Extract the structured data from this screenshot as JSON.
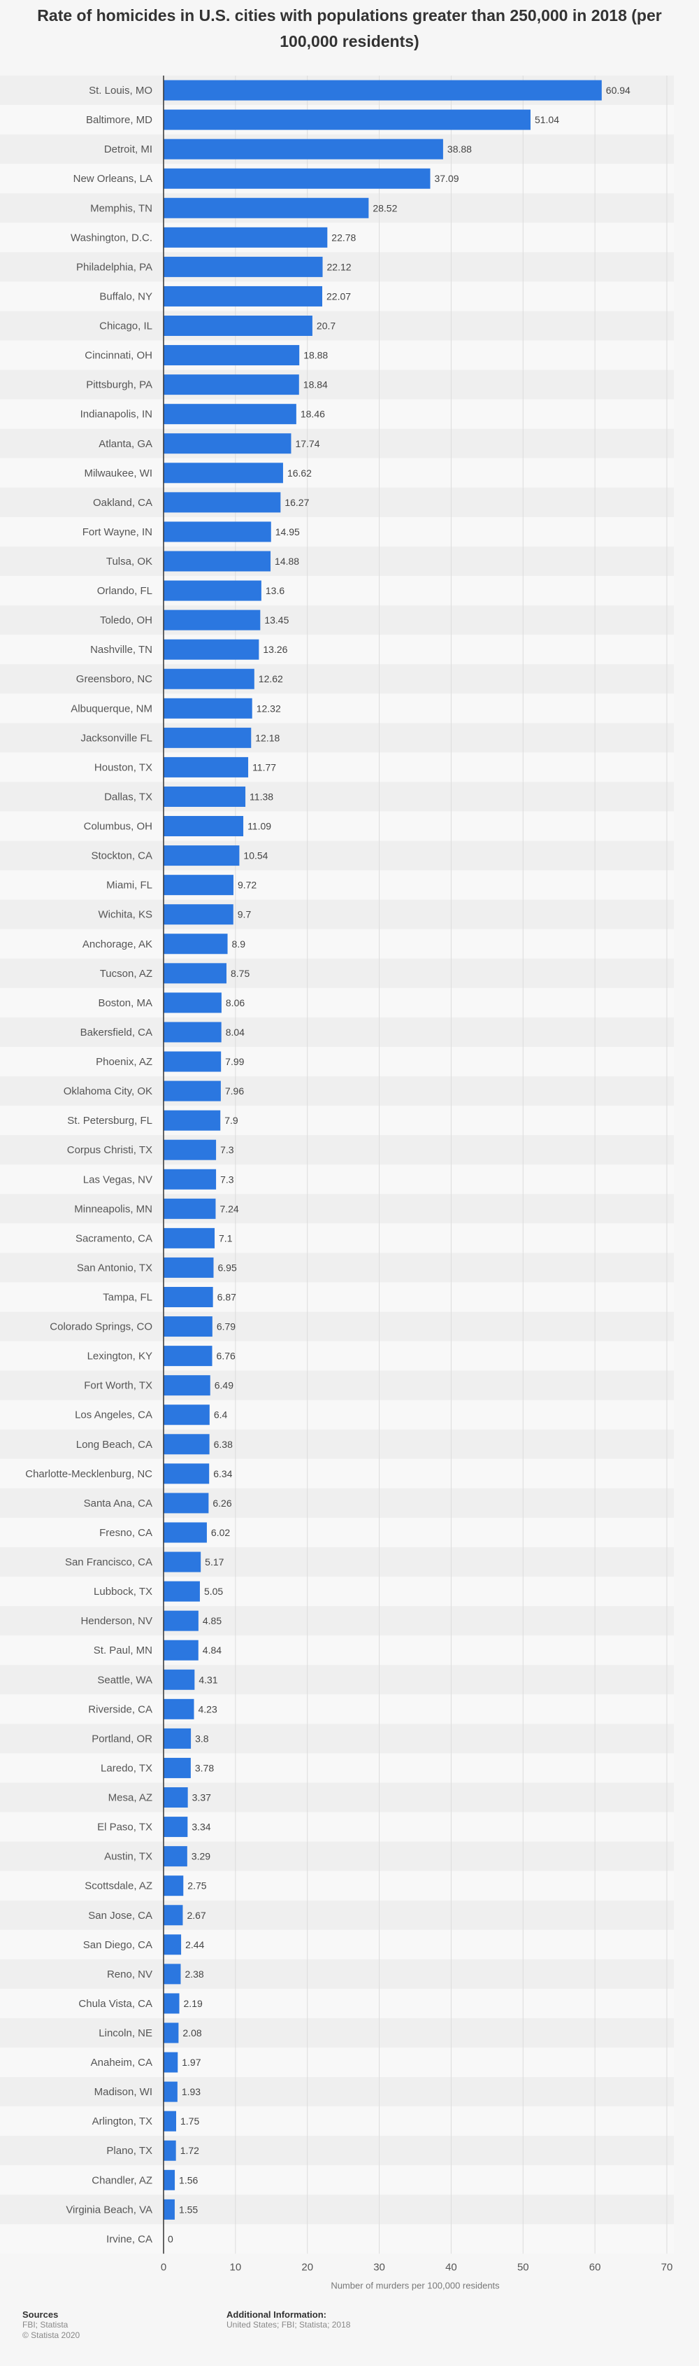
{
  "title": "Rate of homicides in U.S. cities with populations greater than 250,000 in 2018 (per 100,000 residents)",
  "chart_data": {
    "type": "bar",
    "orientation": "horizontal",
    "title": "Rate of homicides in U.S. cities with populations greater than 250,000 in 2018 (per 100,000 residents)",
    "xlabel": "Number of murders per 100,000 residents",
    "ylabel": "",
    "xlim": [
      0,
      70
    ],
    "ticks": [
      0,
      10,
      20,
      30,
      40,
      50,
      60,
      70
    ],
    "grid": true,
    "bar_color": "#2b77e0",
    "categories": [
      "St. Louis, MO",
      "Baltimore, MD",
      "Detroit, MI",
      "New Orleans, LA",
      "Memphis, TN",
      "Washington, D.C.",
      "Philadelphia, PA",
      "Buffalo, NY",
      "Chicago, IL",
      "Cincinnati, OH",
      "Pittsburgh, PA",
      "Indianapolis, IN",
      "Atlanta, GA",
      "Milwaukee, WI",
      "Oakland, CA",
      "Fort Wayne, IN",
      "Tulsa, OK",
      "Orlando, FL",
      "Toledo, OH",
      "Nashville, TN",
      "Greensboro, NC",
      "Albuquerque, NM",
      "Jacksonville FL",
      "Houston, TX",
      "Dallas, TX",
      "Columbus, OH",
      "Stockton, CA",
      "Miami, FL",
      "Wichita, KS",
      "Anchorage, AK",
      "Tucson, AZ",
      "Boston, MA",
      "Bakersfield, CA",
      "Phoenix, AZ",
      "Oklahoma City, OK",
      "St. Petersburg, FL",
      "Corpus Christi, TX",
      "Las Vegas, NV",
      "Minneapolis, MN",
      "Sacramento, CA",
      "San Antonio, TX",
      "Tampa, FL",
      "Colorado Springs, CO",
      "Lexington, KY",
      "Fort Worth, TX",
      "Los Angeles, CA",
      "Long Beach, CA",
      "Charlotte-Mecklenburg, NC",
      "Santa Ana, CA",
      "Fresno, CA",
      "San Francisco, CA",
      "Lubbock, TX",
      "Henderson, NV",
      "St. Paul, MN",
      "Seattle, WA",
      "Riverside, CA",
      "Portland, OR",
      "Laredo, TX",
      "Mesa, AZ",
      "El Paso, TX",
      "Austin, TX",
      "Scottsdale, AZ",
      "San Jose, CA",
      "San Diego, CA",
      "Reno, NV",
      "Chula Vista, CA",
      "Lincoln, NE",
      "Anaheim, CA",
      "Madison, WI",
      "Arlington, TX",
      "Plano, TX",
      "Chandler, AZ",
      "Virginia Beach, VA",
      "Irvine, CA"
    ],
    "values": [
      60.94,
      51.04,
      38.88,
      37.09,
      28.52,
      22.78,
      22.12,
      22.07,
      20.7,
      18.88,
      18.84,
      18.46,
      17.74,
      16.62,
      16.27,
      14.95,
      14.88,
      13.6,
      13.45,
      13.26,
      12.62,
      12.32,
      12.18,
      11.77,
      11.38,
      11.09,
      10.54,
      9.72,
      9.7,
      8.9,
      8.75,
      8.06,
      8.04,
      7.99,
      7.96,
      7.9,
      7.3,
      7.3,
      7.24,
      7.1,
      6.95,
      6.87,
      6.79,
      6.76,
      6.49,
      6.4,
      6.38,
      6.34,
      6.26,
      6.02,
      5.17,
      5.05,
      4.85,
      4.84,
      4.31,
      4.23,
      3.8,
      3.78,
      3.37,
      3.34,
      3.29,
      2.75,
      2.67,
      2.44,
      2.38,
      2.19,
      2.08,
      1.97,
      1.93,
      1.75,
      1.72,
      1.56,
      1.55,
      0
    ],
    "value_labels": [
      "60.94",
      "51.04",
      "38.88",
      "37.09",
      "28.52",
      "22.78",
      "22.12",
      "22.07",
      "20.7",
      "18.88",
      "18.84",
      "18.46",
      "17.74",
      "16.62",
      "16.27",
      "14.95",
      "14.88",
      "13.6",
      "13.45",
      "13.26",
      "12.62",
      "12.32",
      "12.18",
      "11.77",
      "11.38",
      "11.09",
      "10.54",
      "9.72",
      "9.7",
      "8.9",
      "8.75",
      "8.06",
      "8.04",
      "7.99",
      "7.96",
      "7.9",
      "7.3",
      "7.3",
      "7.24",
      "7.1",
      "6.95",
      "6.87",
      "6.79",
      "6.76",
      "6.49",
      "6.4",
      "6.38",
      "6.34",
      "6.26",
      "6.02",
      "5.17",
      "5.05",
      "4.85",
      "4.84",
      "4.31",
      "4.23",
      "3.8",
      "3.78",
      "3.37",
      "3.34",
      "3.29",
      "2.75",
      "2.67",
      "2.44",
      "2.38",
      "2.19",
      "2.08",
      "1.97",
      "1.93",
      "1.75",
      "1.72",
      "1.56",
      "1.55",
      "0"
    ]
  },
  "footer": {
    "sources_heading": "Sources",
    "sources_lines": [
      "FBI; Statista",
      "© Statista 2020"
    ],
    "additional_heading": "Additional Information:",
    "additional_text": "United States; FBI; Statista; 2018"
  }
}
